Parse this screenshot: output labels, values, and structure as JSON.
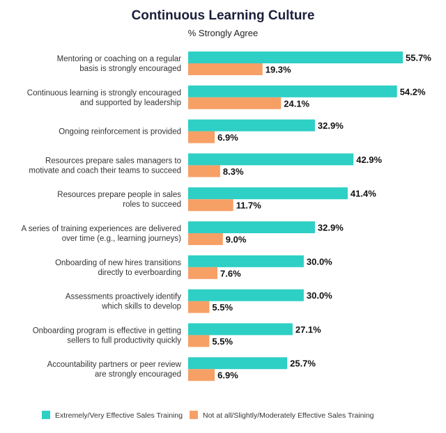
{
  "chart_data": {
    "type": "bar",
    "orientation": "horizontal",
    "title": "Continuous Learning Culture",
    "subtitle": "% Strongly Agree",
    "categories": [
      [
        "Mentoring or coaching on a regular",
        "basis is strongly encouraged"
      ],
      [
        "Continuous learning is strongly encouraged",
        "and supported by leadership"
      ],
      [
        "Ongoing reinforcement is provided"
      ],
      [
        "Resources prepare sales managers to",
        "motivate and coach their teams to succeed"
      ],
      [
        "Resources prepare people in sales",
        "roles to succeed"
      ],
      [
        "A series of training experiences are delivered",
        "over time (e.g., learning journeys)"
      ],
      [
        "Onboarding of new hires transitions",
        "directly to everboarding"
      ],
      [
        "Assessments proactively identify",
        "which skills to develop"
      ],
      [
        "Onboarding program is effective in getting",
        "sellers to full productivity quickly"
      ],
      [
        "Accountability partners or peer review",
        "are strongly encouraged"
      ]
    ],
    "series": [
      {
        "name": "Extremely/Very Effective Sales Training",
        "color": "#2ecfc4",
        "values": [
          55.7,
          54.2,
          32.9,
          42.9,
          41.4,
          32.9,
          30.0,
          30.0,
          27.1,
          25.7
        ],
        "labels": [
          "55.7%",
          "54.2%",
          "32.9%",
          "42.9%",
          "41.4%",
          "32.9%",
          "30.0%",
          "30.0%",
          "27.1%",
          "25.7%"
        ]
      },
      {
        "name": "Not at all/Slightly/Moderately Effective Sales Training",
        "color": "#f7a066",
        "values": [
          19.3,
          24.1,
          6.9,
          8.3,
          11.7,
          9.0,
          7.6,
          5.5,
          5.5,
          6.9
        ],
        "labels": [
          "19.3%",
          "24.1%",
          "6.9%",
          "8.3%",
          "11.7%",
          "9.0%",
          "7.6%",
          "5.5%",
          "5.5%",
          "6.9%"
        ]
      }
    ],
    "xlim": [
      0,
      58
    ],
    "grid": false,
    "legend_position": "bottom"
  }
}
